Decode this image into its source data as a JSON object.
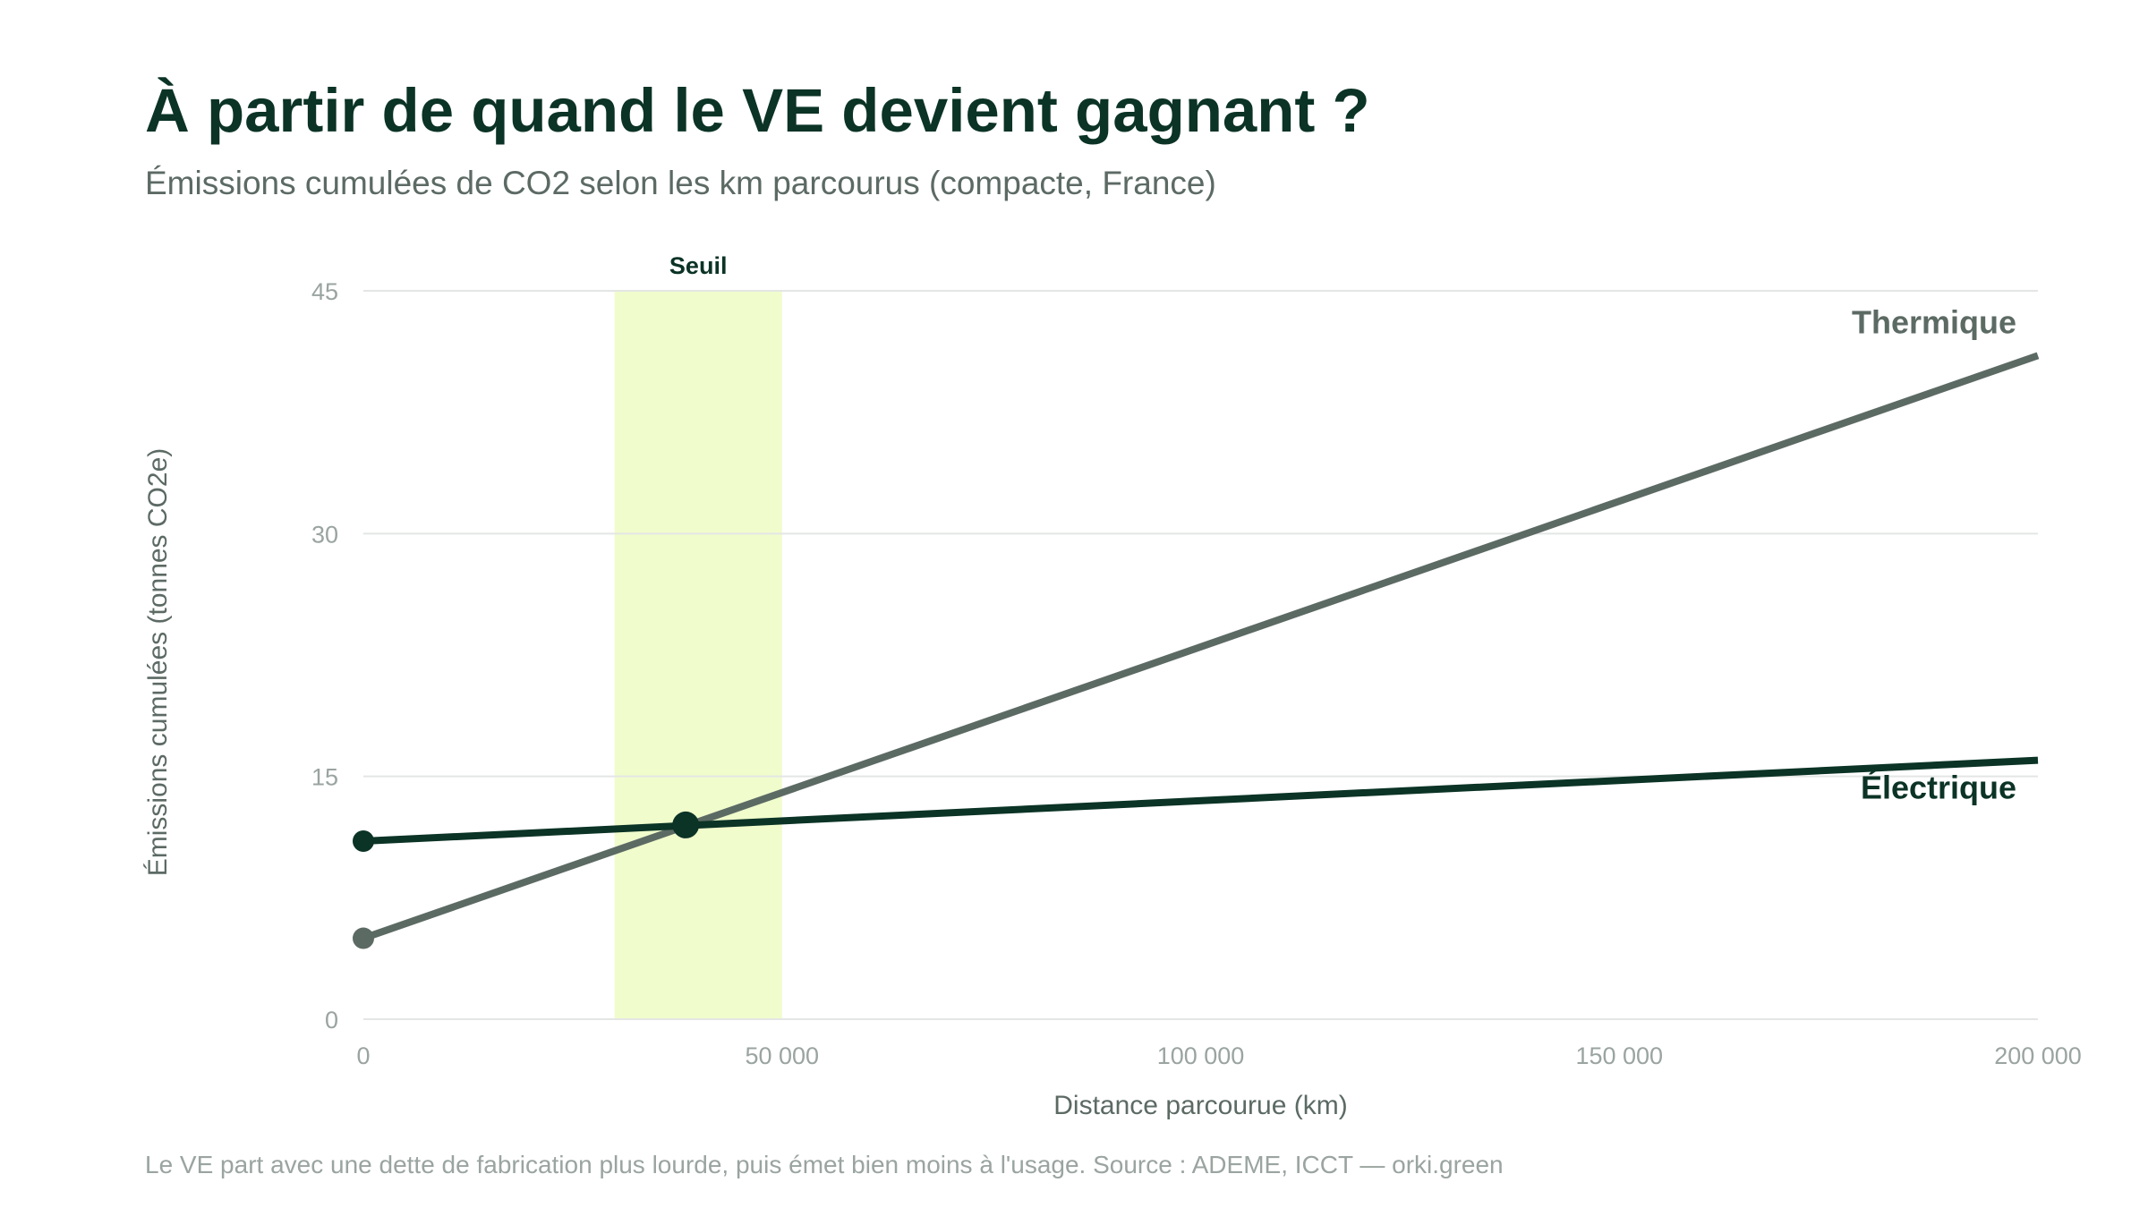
{
  "title": "À partir de quand le VE devient gagnant ?",
  "subtitle": "Émissions cumulées de CO2 selon les km parcourus (compacte, France)",
  "footer": "Le VE part avec une dette de fabrication plus lourde, puis émet bien moins à l'usage. Source : ADEME, ICCT — orki.green",
  "colors": {
    "electric": "#0b3326",
    "thermal": "#5c6a64",
    "threshold_band": "#f0fccc",
    "grid": "#e3e6e4",
    "tick": "#9aa4a0"
  },
  "chart_data": {
    "type": "line",
    "xlabel": "Distance parcourue (km)",
    "ylabel": "Émissions cumulées (tonnes CO2e)",
    "xlim": [
      0,
      200000
    ],
    "ylim": [
      0,
      45
    ],
    "x_ticks": [
      0,
      50000,
      100000,
      150000,
      200000
    ],
    "x_tick_labels": [
      "0",
      "50 000",
      "100 000",
      "150 000",
      "200 000"
    ],
    "y_ticks": [
      0,
      15,
      30,
      45
    ],
    "y_tick_labels": [
      "0",
      "15",
      "30",
      "45"
    ],
    "grid": true,
    "series": [
      {
        "name": "Thermique",
        "color": "#5c6a64",
        "x": [
          0,
          200000
        ],
        "y": [
          5,
          41
        ]
      },
      {
        "name": "Électrique",
        "color": "#0b3326",
        "x": [
          0,
          200000
        ],
        "y": [
          11,
          16
        ]
      }
    ],
    "crossover_point": {
      "x": 38500,
      "y": 12
    },
    "threshold_band": {
      "label": "Seuil",
      "x_start": 30000,
      "x_end": 50000
    }
  }
}
